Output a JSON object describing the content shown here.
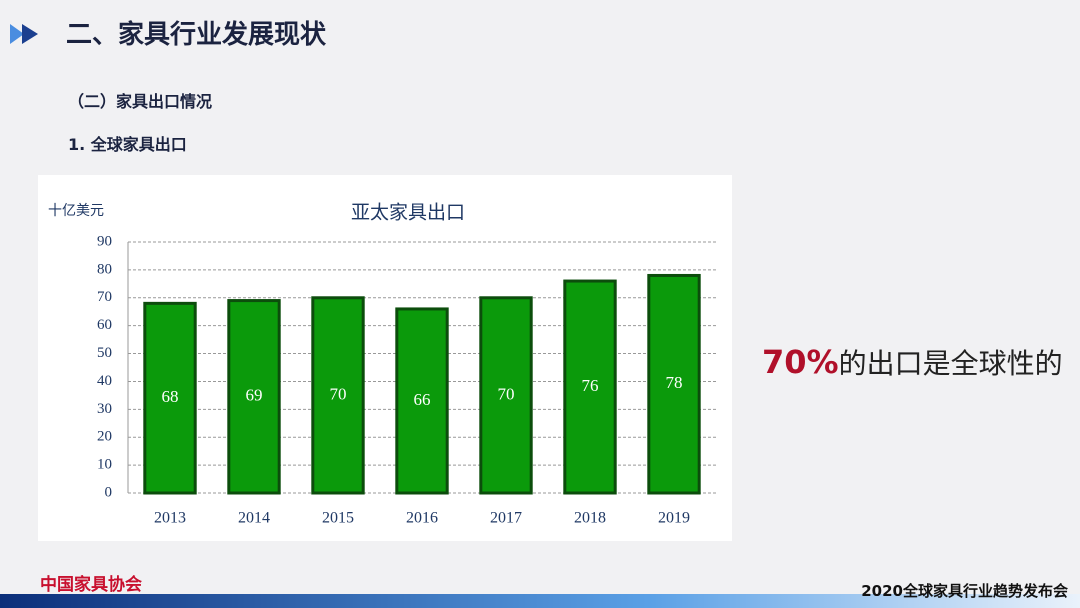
{
  "header": {
    "title": "二、家具行业发展现状",
    "section": "（二）家具出口情况",
    "subsection": "1. 全球家具出口"
  },
  "chart_data": {
    "type": "bar",
    "title": "亚太家具出口",
    "y_label": "十亿美元",
    "categories": [
      "2013",
      "2014",
      "2015",
      "2016",
      "2017",
      "2018",
      "2019"
    ],
    "values": [
      68,
      69,
      70,
      66,
      70,
      76,
      78
    ],
    "color": "#0b9a0b",
    "ylim": [
      0,
      90
    ],
    "yticks": [
      0,
      10,
      20,
      30,
      40,
      50,
      60,
      70,
      80,
      90
    ],
    "grid": true
  },
  "callout": {
    "highlight": "70%",
    "text": "的出口是全球性的"
  },
  "footer": {
    "logo": "中国家具协会",
    "event": "2020全球家具行业趋势发布会"
  }
}
